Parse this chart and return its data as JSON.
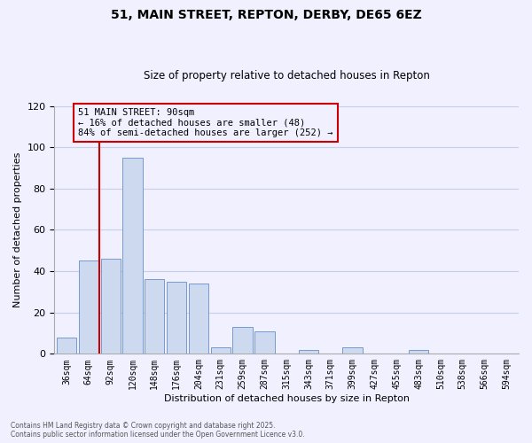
{
  "title": "51, MAIN STREET, REPTON, DERBY, DE65 6EZ",
  "subtitle": "Size of property relative to detached houses in Repton",
  "xlabel": "Distribution of detached houses by size in Repton",
  "ylabel": "Number of detached properties",
  "bar_labels": [
    "36sqm",
    "64sqm",
    "92sqm",
    "120sqm",
    "148sqm",
    "176sqm",
    "204sqm",
    "231sqm",
    "259sqm",
    "287sqm",
    "315sqm",
    "343sqm",
    "371sqm",
    "399sqm",
    "427sqm",
    "455sqm",
    "483sqm",
    "510sqm",
    "538sqm",
    "566sqm",
    "594sqm"
  ],
  "bar_values": [
    8,
    45,
    46,
    95,
    36,
    35,
    34,
    3,
    13,
    11,
    0,
    2,
    0,
    3,
    0,
    0,
    2,
    0,
    0,
    0,
    0
  ],
  "bar_color": "#ccd9ee",
  "bar_edge_color": "#7799cc",
  "ylim": [
    0,
    120
  ],
  "yticks": [
    0,
    20,
    40,
    60,
    80,
    100,
    120
  ],
  "vline_color": "#cc0000",
  "annotation_title": "51 MAIN STREET: 90sqm",
  "annotation_line1": "← 16% of detached houses are smaller (48)",
  "annotation_line2": "84% of semi-detached houses are larger (252) →",
  "annotation_box_color": "#cc0000",
  "footnote1": "Contains HM Land Registry data © Crown copyright and database right 2025.",
  "footnote2": "Contains public sector information licensed under the Open Government Licence v3.0.",
  "background_color": "#f0f0ff",
  "grid_color": "#c8d0e8"
}
